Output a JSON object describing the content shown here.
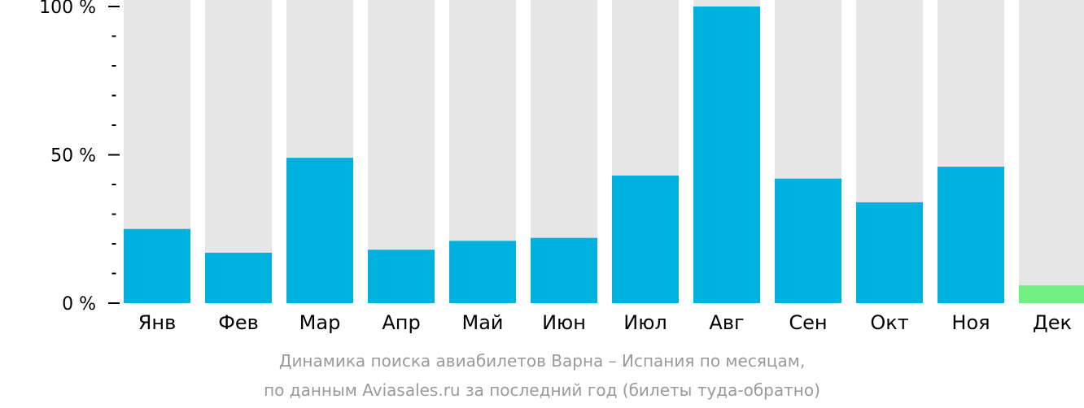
{
  "chart_data": {
    "type": "bar",
    "categories": [
      "Янв",
      "Фев",
      "Мар",
      "Апр",
      "Май",
      "Июн",
      "Июл",
      "Авг",
      "Сен",
      "Окт",
      "Ноя",
      "Дек"
    ],
    "values": [
      25,
      17,
      49,
      18,
      21,
      22,
      43,
      100,
      42,
      34,
      46,
      6
    ],
    "ylim": [
      0,
      100
    ],
    "yticks": [
      "0 %",
      "50 %",
      "100 %"
    ],
    "ytick_values": [
      0,
      50,
      100
    ],
    "minor_tick_step": 10,
    "colors": {
      "bar": "#00b0dd",
      "current_month_bar": "#6ff080",
      "track": "#e7e7e7",
      "axis": "#000000",
      "caption": "#9a9a9a"
    },
    "highlight_index": 11,
    "caption_line1": "Динамика поиска авиабилетов Варна – Испания по месяцам,",
    "caption_line2": "по данным Aviasales.ru за последний год (билеты туда-обратно)"
  }
}
